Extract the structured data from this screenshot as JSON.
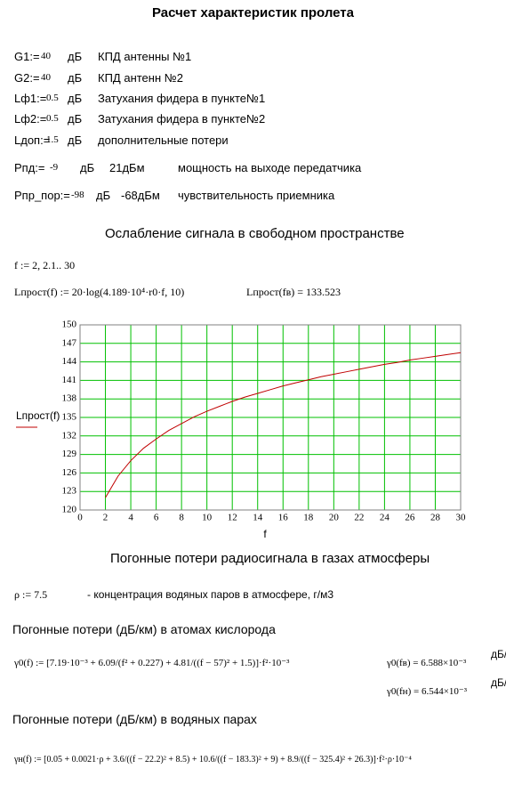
{
  "title": "Расчет характеристик пролета",
  "params": [
    {
      "label": "G1:=",
      "value": 40,
      "unit": "дБ",
      "desc": "КПД антенны №1"
    },
    {
      "label": "G2:=",
      "value": 40,
      "unit": "дБ",
      "desc": "КПД антенн №2"
    },
    {
      "label": "Lф1:=",
      "value": 0.5,
      "unit": "дБ",
      "desc": "Затухания фидера в пункте№1"
    },
    {
      "label": "Lф2:=",
      "value": 0.5,
      "unit": "дБ",
      "desc": "Затухания фидера в пункте№2"
    },
    {
      "label": "Lдоп:=",
      "value": 1.5,
      "unit": "дБ",
      "desc": "дополнительные потери"
    }
  ],
  "power": [
    {
      "label": "Pпд:=",
      "value": -9,
      "unit": "дБ",
      "extra": "21дБм",
      "desc": "мощность на выходе передатчика"
    },
    {
      "label": "Pпр_пор:=",
      "value": -98,
      "unit": "дБ",
      "extra": "-68дБм",
      "desc": "чувствительность приемника"
    }
  ],
  "section1": "Ослабление сигнала в свободном пространстве",
  "range_def": "f := 2, 2.1.. 30",
  "loss_formula": "Lпрост(f) := 20·log(4.189·10⁴·r0·f, 10)",
  "loss_result": "Lпрост(fв) = 133.523",
  "chart_data": {
    "type": "line",
    "x_label": "f",
    "y_label": "Lпрост(f)",
    "color": "#c00000",
    "grid": true,
    "grid_color": "#00c000",
    "x": [
      2,
      3,
      4,
      5,
      6,
      7,
      8,
      9,
      10,
      11,
      12,
      13,
      14,
      15,
      16,
      17,
      18,
      19,
      20,
      21,
      22,
      23,
      24,
      25,
      26,
      27,
      28,
      29,
      30
    ],
    "values": [
      122.0,
      125.5,
      128.0,
      130.0,
      131.5,
      132.9,
      134.0,
      135.1,
      136.0,
      136.8,
      137.6,
      138.3,
      138.9,
      139.5,
      140.1,
      140.6,
      141.1,
      141.6,
      142.0,
      142.4,
      142.8,
      143.2,
      143.6,
      143.9,
      144.3,
      144.6,
      144.9,
      145.2,
      145.5
    ],
    "xlim": [
      0,
      30
    ],
    "xticks": [
      0,
      2,
      4,
      6,
      8,
      10,
      12,
      14,
      16,
      18,
      20,
      22,
      24,
      26,
      28,
      30
    ],
    "ylim": [
      120,
      150
    ],
    "yticks": [
      120,
      123,
      126,
      129,
      132,
      135,
      138,
      141,
      144,
      147,
      150
    ]
  },
  "section2": "Погонные потери радиосигнала в газах атмосферы",
  "rho_def": "ρ := 7.5",
  "rho_desc": "- концентрация водяных паров в атмосфере, г/м3",
  "oxygen_heading": "Погонные потери (дБ/км) в атомах кислорода",
  "oxygen_formula": "γ0(f) := [7.19·10⁻³ + 6.09/(f² + 0.227) + 4.81/((f − 57)² + 1.5)]·f²·10⁻³",
  "oxygen_results": [
    {
      "text": "γ0(fв) = 6.588×10⁻³",
      "unit": "дБ/км"
    },
    {
      "text": "γ0(fн) = 6.544×10⁻³",
      "unit": "дБ/км"
    }
  ],
  "water_heading": "Погонные потери (дБ/км) в водяных парах",
  "water_formula": "γн(f) := [0.05 + 0.0021·ρ + 3.6/((f − 22.2)² + 8.5) + 10.6/((f − 183.3)² + 9) + 8.9/((f − 325.4)² + 26.3)]·f²·ρ·10⁻⁴"
}
